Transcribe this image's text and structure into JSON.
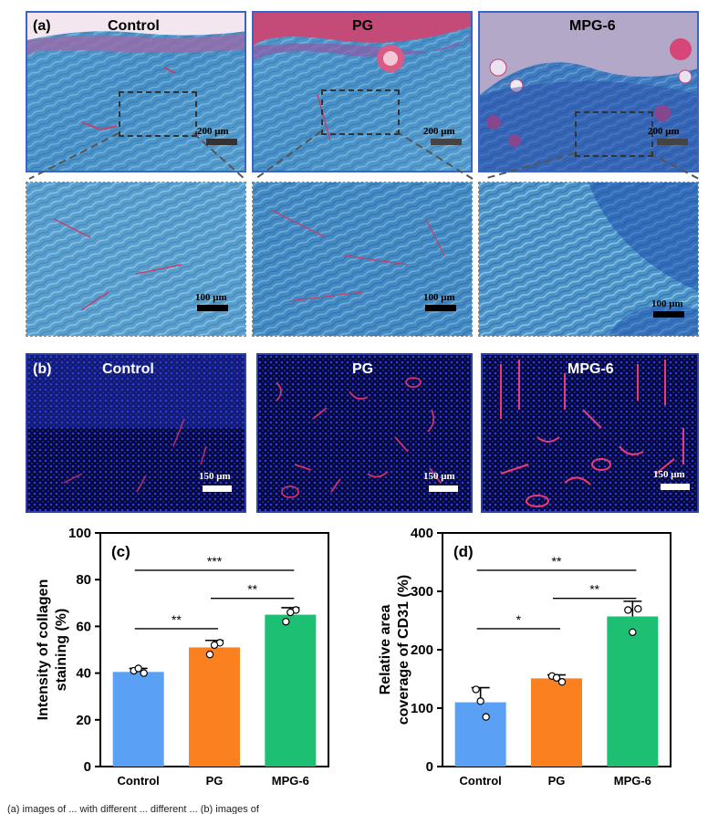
{
  "figure": {
    "panel_a": {
      "label": "(a)",
      "titles": [
        "Control",
        "PG",
        "MPG-6"
      ],
      "overview_scale": "200 μm",
      "zoom_scale": "100 μm"
    },
    "panel_b": {
      "label": "(b)",
      "titles": [
        "Control",
        "PG",
        "MPG-6"
      ],
      "scale": "150 μm"
    },
    "caption_fragment": "(a) images of ... with different ... different ... (b) images of"
  },
  "colors": {
    "control": "#5aa1f5",
    "pg": "#fb8020",
    "mpg6": "#1dbf73",
    "masson_blue": "#4f97c9",
    "masson_red": "#c2426d",
    "if_blue": "#1a2cc0",
    "if_red": "#e0326e"
  },
  "chart_data": [
    {
      "type": "bar",
      "panel_label": "(c)",
      "categories": [
        "Control",
        "PG",
        "MPG-6"
      ],
      "values": [
        40.5,
        51,
        65
      ],
      "errors": [
        1.5,
        3,
        3
      ],
      "points": [
        [
          41,
          40,
          42
        ],
        [
          48,
          53,
          52
        ],
        [
          62,
          67,
          66
        ]
      ],
      "ylabel": "Intensity of collagen staining (%)",
      "ylim": [
        0,
        100
      ],
      "yticks": [
        0,
        20,
        40,
        60,
        80,
        100
      ],
      "significance": [
        {
          "from": 0,
          "to": 1,
          "label": "**"
        },
        {
          "from": 1,
          "to": 2,
          "label": "**"
        },
        {
          "from": 0,
          "to": 2,
          "label": "***"
        }
      ]
    },
    {
      "type": "bar",
      "panel_label": "(d)",
      "categories": [
        "Control",
        "PG",
        "MPG-6"
      ],
      "values": [
        110,
        151,
        257
      ],
      "errors": [
        25,
        6,
        26
      ],
      "points": [
        [
          132,
          85,
          112
        ],
        [
          155,
          145,
          152
        ],
        [
          268,
          270,
          230
        ]
      ],
      "ylabel": "Relative area coverage of CD31 (%)",
      "ylim": [
        0,
        400
      ],
      "yticks": [
        0,
        100,
        200,
        300,
        400
      ],
      "significance": [
        {
          "from": 0,
          "to": 1,
          "label": "*"
        },
        {
          "from": 1,
          "to": 2,
          "label": "**"
        },
        {
          "from": 0,
          "to": 2,
          "label": "**"
        }
      ]
    }
  ]
}
